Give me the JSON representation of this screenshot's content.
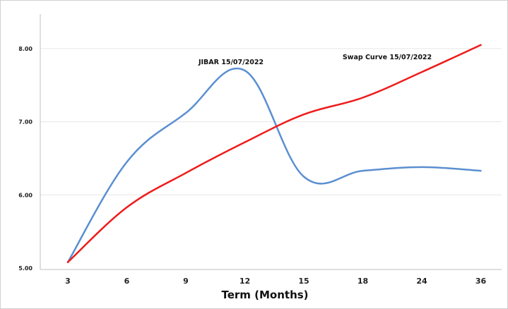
{
  "chart_data": {
    "type": "line",
    "categories": [
      "3",
      "6",
      "9",
      "12",
      "15",
      "18",
      "24",
      "36"
    ],
    "xlabel": "Term (Months)",
    "ylabel": "",
    "ylim": [
      5.0,
      8.5
    ],
    "yticks": [
      "5.00",
      "6.00",
      "7.00",
      "8.00"
    ],
    "grid": true,
    "series": [
      {
        "name": "JIBAR  15/07/2022",
        "values": [
          5.08,
          6.45,
          7.12,
          7.7,
          6.25,
          6.33,
          6.38,
          6.33
        ],
        "color": "#5b8fd1"
      },
      {
        "name": "Swap Curve  15/07/2022",
        "values": [
          5.08,
          5.83,
          6.3,
          6.72,
          7.1,
          7.33,
          7.68,
          8.05
        ],
        "color": "#ee1c1c"
      }
    ]
  }
}
